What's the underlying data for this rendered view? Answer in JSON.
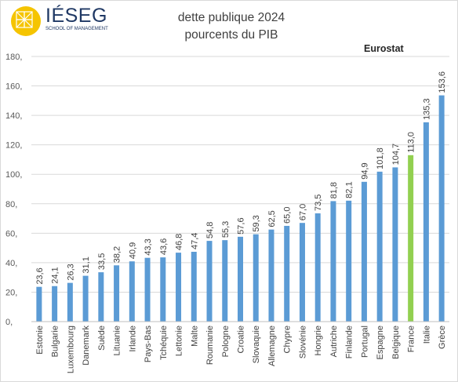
{
  "logo": {
    "name": "IÉSEG",
    "tagline": "SCHOOL OF MANAGEMENT"
  },
  "title_line1": "dette publique 2024",
  "title_line2": "pourcents du PIB",
  "source_label": "Eurostat",
  "colors": {
    "bar": "#5b9bd5",
    "highlight": "#92d050",
    "grid": "#d9d9d9",
    "text": "#595959",
    "logo": "#f5c400"
  },
  "chart_data": {
    "type": "bar",
    "title": "dette publique 2024 pourcents du PIB",
    "categories": [
      "Estonie",
      "Bulgarie",
      "Luxembourg",
      "Danemark",
      "Suède",
      "Lituanie",
      "Irlande",
      "Pays-Bas",
      "Tchéquie",
      "Lettonie",
      "Malte",
      "Roumanie",
      "Pologne",
      "Croatie",
      "Slovaquie",
      "Allemagne",
      "Chypre",
      "Slovénie",
      "Hongrie",
      "Autriche",
      "Finlande",
      "Portugal",
      "Espagne",
      "Belgique",
      "France",
      "Italie",
      "Grèce"
    ],
    "values": [
      23.6,
      24.1,
      26.3,
      31.1,
      33.5,
      38.2,
      40.9,
      43.3,
      43.6,
      46.8,
      47.4,
      54.8,
      55.3,
      57.6,
      59.3,
      62.5,
      65.0,
      67.0,
      73.5,
      81.8,
      82.1,
      94.9,
      101.8,
      104.7,
      113.0,
      135.3,
      153.6
    ],
    "value_labels": [
      "23,6",
      "24,1",
      "26,3",
      "31,1",
      "33,5",
      "38,2",
      "40,9",
      "43,3",
      "43,6",
      "46,8",
      "47,4",
      "54,8",
      "55,3",
      "57,6",
      "59,3",
      "62,5",
      "65,0",
      "67,0",
      "73,5",
      "81,8",
      "82,1",
      "94,9",
      "101,8",
      "104,7",
      "113,0",
      "135,3",
      "153,6"
    ],
    "highlight": "France",
    "y_ticks": [
      "0,",
      "20,",
      "40,",
      "60,",
      "80,",
      "100,",
      "120,",
      "140,",
      "160,",
      "180,"
    ],
    "ylim": [
      0,
      180
    ],
    "grid": true
  }
}
